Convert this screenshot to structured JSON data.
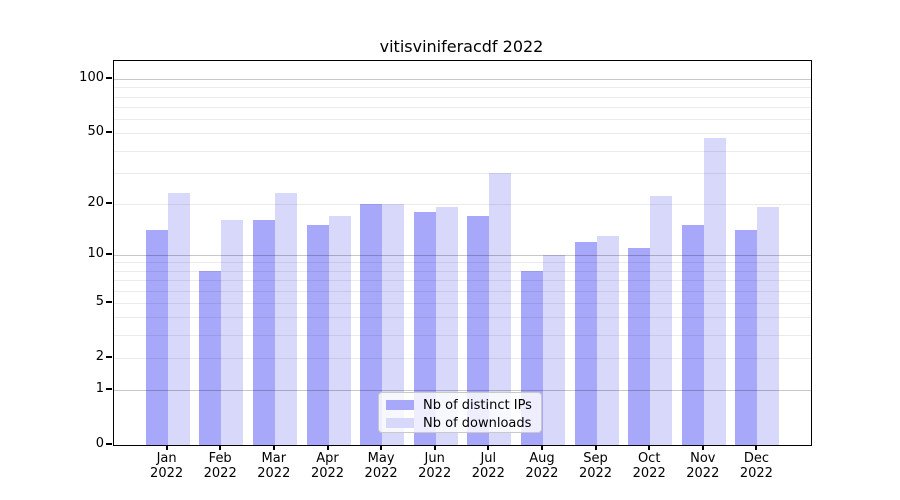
{
  "title": "vitisviniferacdf 2022",
  "legend": {
    "items": [
      {
        "label": "Nb of distinct IPs",
        "color": "#a8a8fa"
      },
      {
        "label": "Nb of downloads",
        "color": "#d8d8fa"
      }
    ]
  },
  "y_axis": {
    "tick_labels": [
      "100",
      "50",
      "20",
      "10",
      "5",
      "2",
      "1",
      "0"
    ]
  },
  "x_axis": {
    "months": [
      "Jan",
      "Feb",
      "Mar",
      "Apr",
      "May",
      "Jun",
      "Jul",
      "Aug",
      "Sep",
      "Oct",
      "Nov",
      "Dec"
    ],
    "year": "2022"
  },
  "chart_data": {
    "type": "bar",
    "title": "vitisviniferacdf 2022",
    "categories": [
      "Jan 2022",
      "Feb 2022",
      "Mar 2022",
      "Apr 2022",
      "May 2022",
      "Jun 2022",
      "Jul 2022",
      "Aug 2022",
      "Sep 2022",
      "Oct 2022",
      "Nov 2022",
      "Dec 2022"
    ],
    "series": [
      {
        "name": "Nb of distinct IPs",
        "color": "#a8a8fa",
        "values": [
          14,
          8,
          16,
          15,
          20,
          18,
          17,
          8,
          12,
          11,
          15,
          14
        ]
      },
      {
        "name": "Nb of downloads",
        "color": "#d8d8fa",
        "values": [
          23,
          16,
          23,
          17,
          20,
          19,
          30,
          10,
          13,
          22,
          47,
          19
        ]
      }
    ],
    "yscale": "log1p",
    "y_ticks": [
      0,
      1,
      2,
      5,
      10,
      20,
      50,
      100
    ],
    "ylim": [
      0,
      127
    ],
    "grid": true,
    "legend_position": "lower center"
  }
}
